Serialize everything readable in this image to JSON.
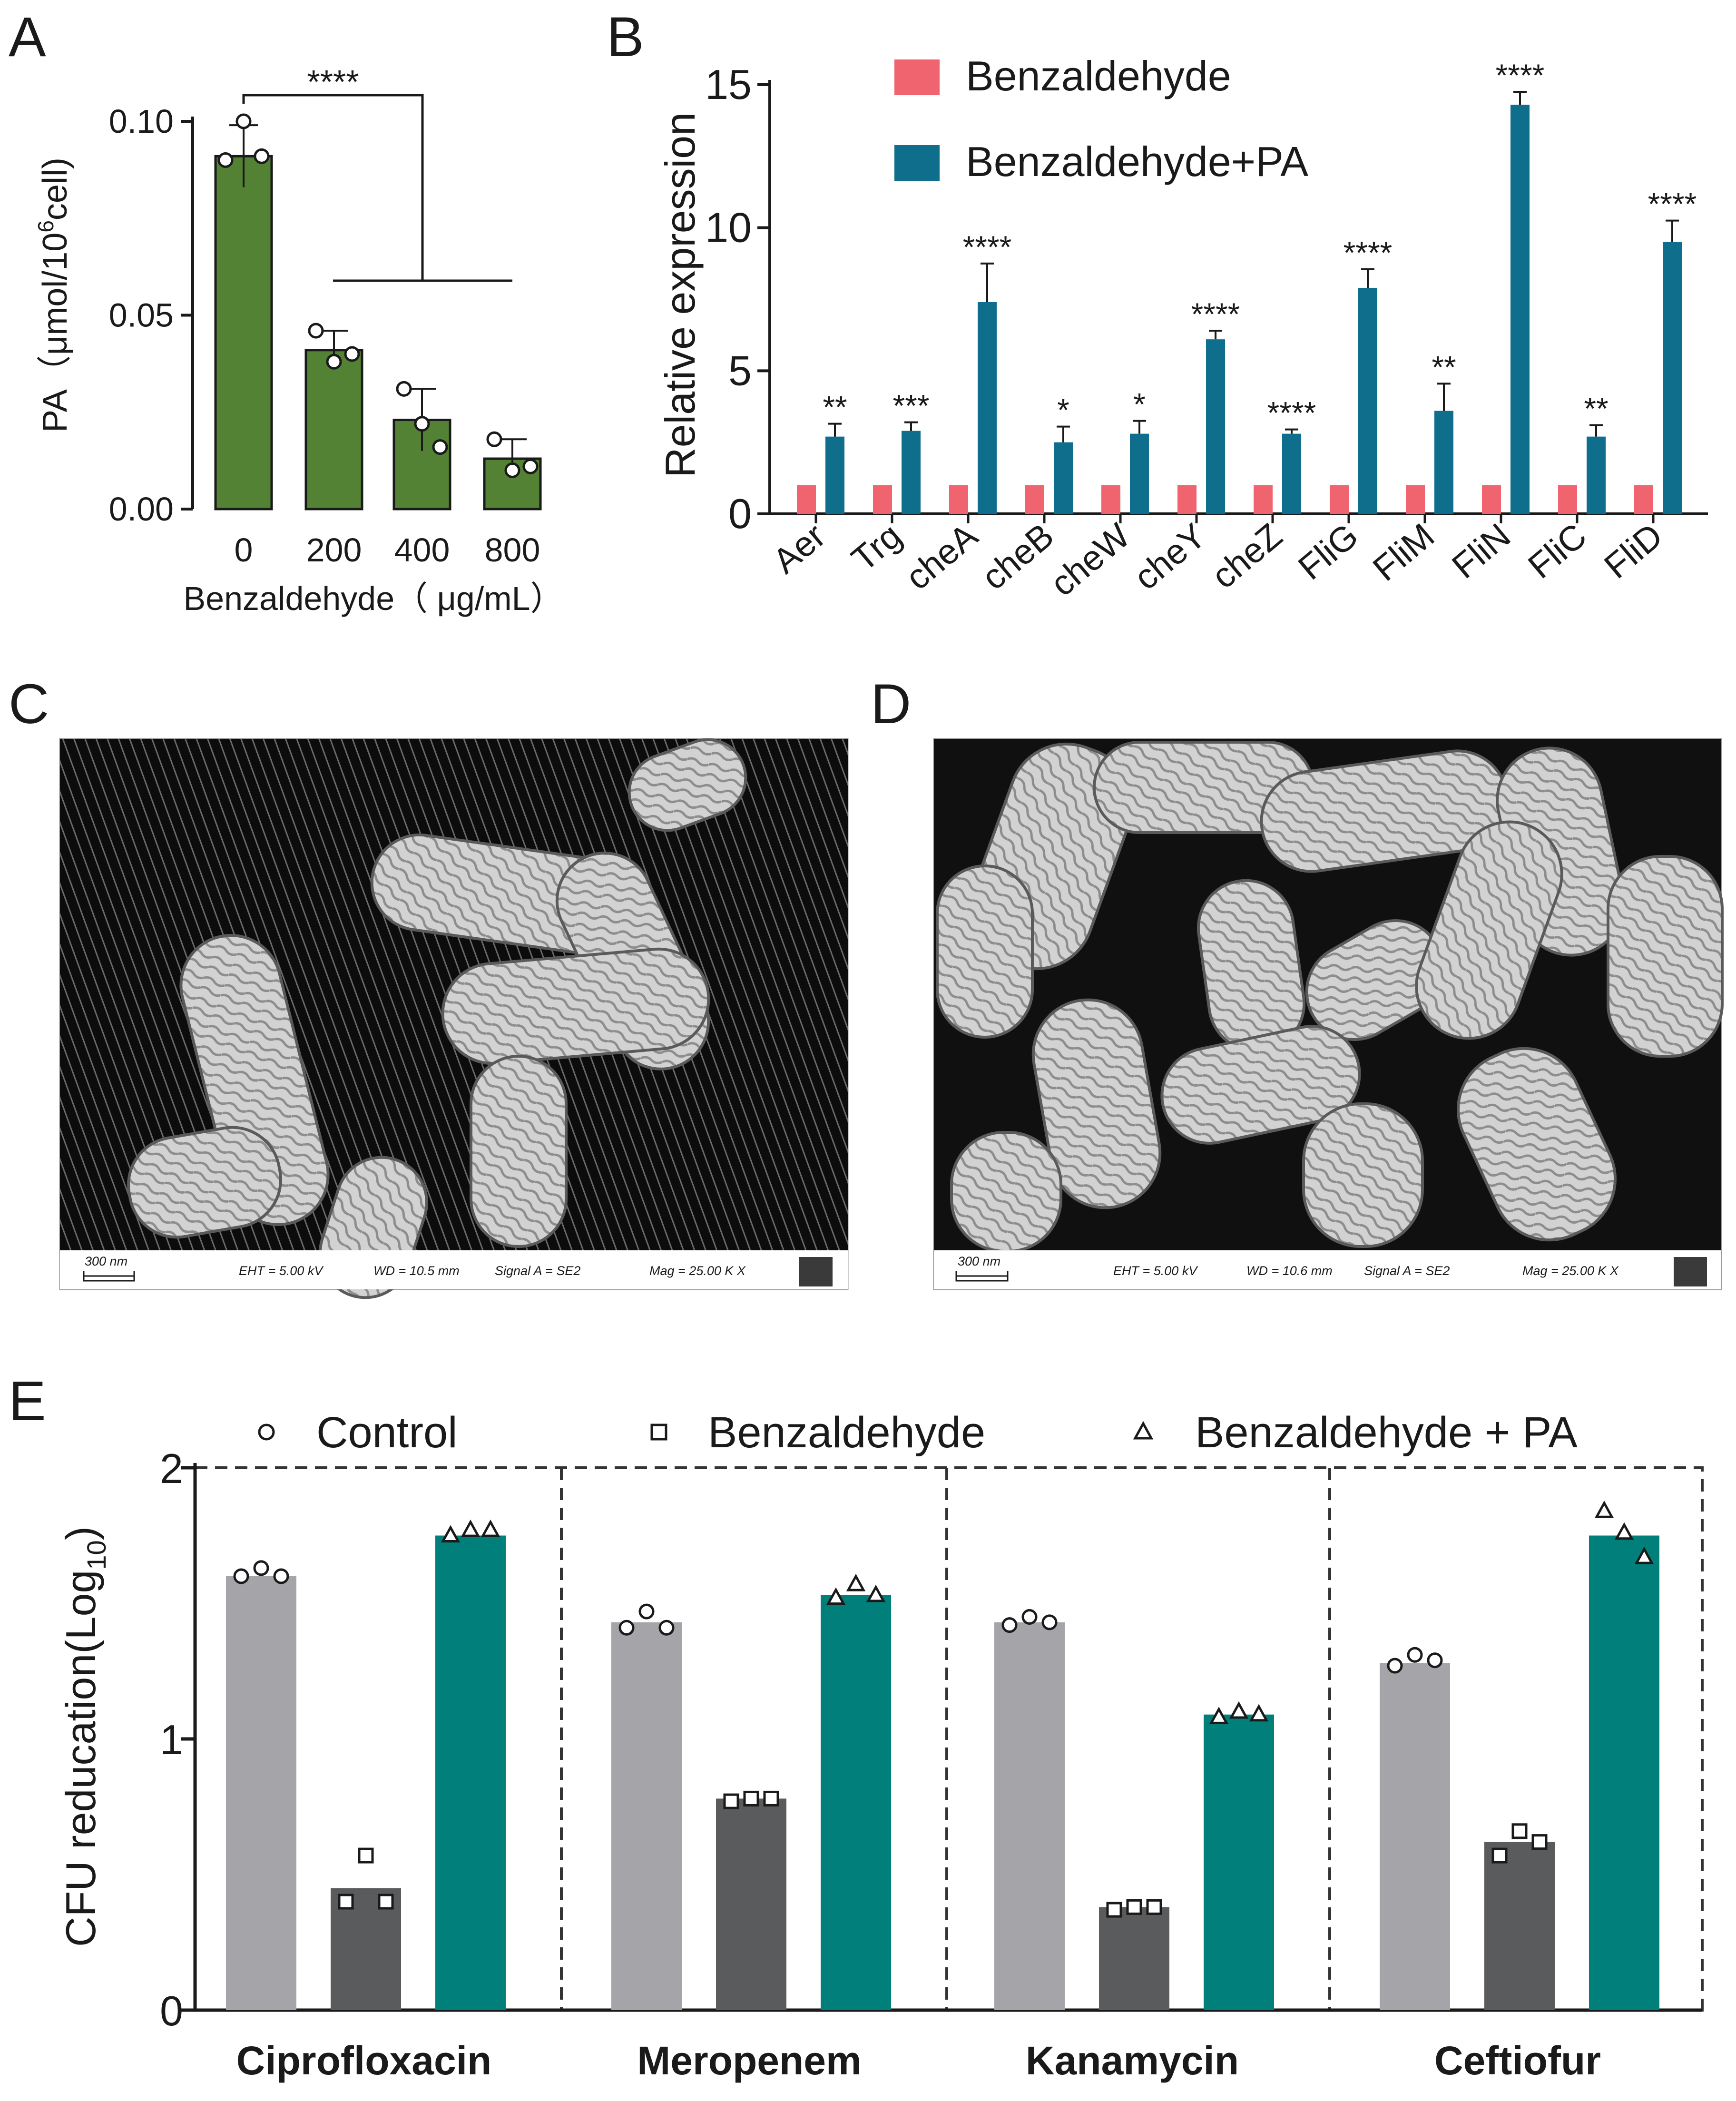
{
  "panels": {
    "a": {
      "letter": "A"
    },
    "b": {
      "letter": "B"
    },
    "c": {
      "letter": "C"
    },
    "d": {
      "letter": "D"
    },
    "e": {
      "letter": "E"
    }
  },
  "chart_data": [
    {
      "panel": "A",
      "type": "bar",
      "categories": [
        "0",
        "200",
        "400",
        "800"
      ],
      "values": [
        0.091,
        0.041,
        0.023,
        0.013
      ],
      "errors": [
        0.008,
        0.005,
        0.008,
        0.005
      ],
      "points": [
        [
          0.09,
          0.1,
          0.091
        ],
        [
          0.046,
          0.038,
          0.04
        ],
        [
          0.031,
          0.022,
          0.016
        ],
        [
          0.018,
          0.01,
          0.011
        ]
      ],
      "ylabel_main": "PA（μmol/10",
      "ylabel_sup": "6",
      "ylabel_end": "cell)",
      "xlabel": "Benzaldehyde（ μg/mL）",
      "ylim": [
        0,
        0.1
      ],
      "yticks": [
        "0.00",
        "0.05",
        "0.10"
      ],
      "annotation": "****",
      "bar_color": "#548235"
    },
    {
      "panel": "B",
      "type": "bar",
      "categories": [
        "Aer",
        "Trg",
        "cheA",
        "cheB",
        "cheW",
        "cheY",
        "cheZ",
        "FliG",
        "FliM",
        "FliN",
        "FliC",
        "FliD"
      ],
      "series": [
        {
          "name": "Benzaldehyde",
          "color": "#f06470",
          "values": [
            1,
            1,
            1,
            1,
            1,
            1,
            1,
            1,
            1,
            1,
            1,
            1
          ]
        },
        {
          "name": "Benzaldehyde+PA",
          "color": "#0e6e8c",
          "values": [
            2.7,
            2.9,
            7.4,
            2.5,
            2.8,
            6.1,
            2.8,
            7.9,
            3.6,
            14.3,
            2.7,
            9.5
          ],
          "errors": [
            0.45,
            0.3,
            1.35,
            0.55,
            0.45,
            0.3,
            0.15,
            0.65,
            0.95,
            0.45,
            0.4,
            0.75
          ]
        }
      ],
      "significance": [
        "**",
        "***",
        "****",
        "*",
        "*",
        "****",
        "****",
        "****",
        "**",
        "****",
        "**",
        "****"
      ],
      "ylabel": "Relative expression",
      "ylim": [
        0,
        15
      ],
      "yticks": [
        "0",
        "5",
        "10",
        "15"
      ]
    },
    {
      "panel": "E",
      "type": "bar",
      "categories": [
        "Ciprofloxacin",
        "Meropenem",
        "Kanamycin",
        "Ceftiofur"
      ],
      "series": [
        {
          "name": "Control",
          "color": "#a5a4a9",
          "marker": "circle",
          "values": [
            1.6,
            1.43,
            1.43,
            1.28
          ],
          "points": [
            [
              1.6,
              1.63,
              1.6
            ],
            [
              1.41,
              1.47,
              1.41
            ],
            [
              1.42,
              1.45,
              1.43
            ],
            [
              1.27,
              1.31,
              1.29
            ]
          ]
        },
        {
          "name": "Benzaldehyde",
          "color": "#5a5b5d",
          "marker": "square",
          "values": [
            0.45,
            0.78,
            0.38,
            0.62
          ],
          "points": [
            [
              0.4,
              0.57,
              0.4
            ],
            [
              0.77,
              0.78,
              0.78
            ],
            [
              0.37,
              0.38,
              0.38
            ],
            [
              0.57,
              0.66,
              0.62
            ]
          ]
        },
        {
          "name": "Benzaldehyde + PA",
          "color": "#007f7b",
          "marker": "triangle",
          "values": [
            1.75,
            1.53,
            1.09,
            1.75
          ],
          "points": [
            [
              1.75,
              1.77,
              1.77
            ],
            [
              1.52,
              1.57,
              1.53
            ],
            [
              1.08,
              1.1,
              1.09
            ],
            [
              1.84,
              1.76,
              1.67
            ]
          ]
        }
      ],
      "ylabel_main": "CFU reducation(Log",
      "ylabel_sub": "10",
      "ylabel_end": ")",
      "ylim": [
        0,
        2
      ],
      "yticks": [
        "0",
        "1",
        "2"
      ]
    }
  ],
  "micrographs": {
    "c": {
      "scale": "300 nm",
      "eht": "EHT =  5.00 kV",
      "wd": "WD = 10.5 mm",
      "signal": "Signal A = SE2",
      "mag": "Mag =   25.00 K X"
    },
    "d": {
      "scale": "300 nm",
      "eht": "EHT =  5.00 kV",
      "wd": "WD = 10.6 mm",
      "signal": "Signal A = SE2",
      "mag": "Mag =   25.00 K X"
    }
  }
}
